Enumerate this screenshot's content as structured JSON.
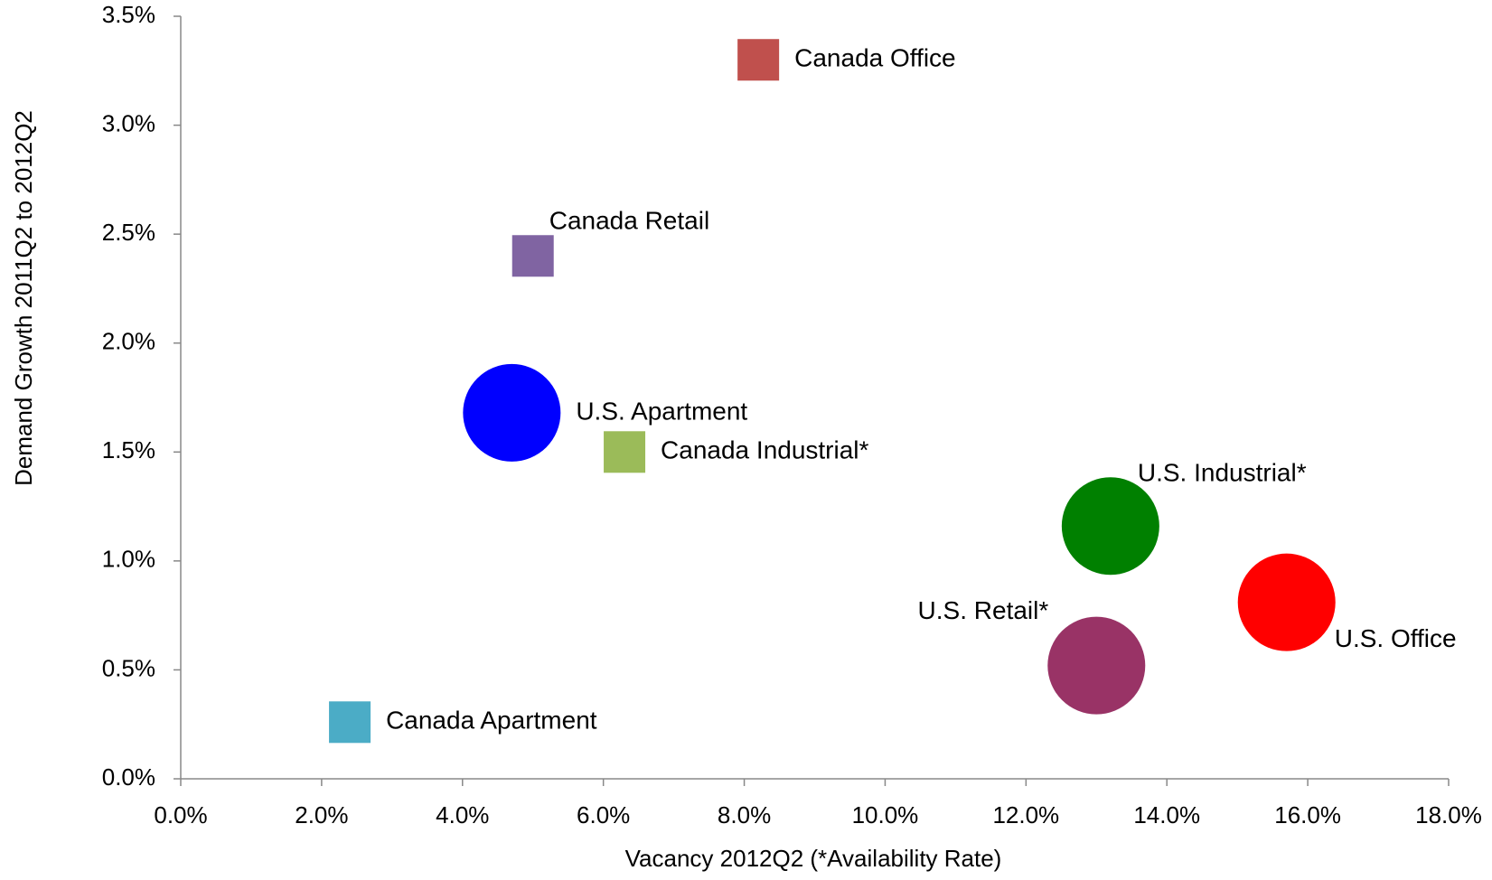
{
  "chart_data": {
    "type": "scatter",
    "x_label": "Vacancy 2012Q2 (*Availability Rate)",
    "y_label": "Demand Growth 2011Q2 to 2012Q2",
    "xlim": [
      0,
      18
    ],
    "ylim": [
      0,
      3.5
    ],
    "xticks": [
      {
        "value": 0,
        "label": "0.0%"
      },
      {
        "value": 2,
        "label": "2.0%"
      },
      {
        "value": 4,
        "label": "4.0%"
      },
      {
        "value": 6,
        "label": "6.0%"
      },
      {
        "value": 8,
        "label": "8.0%"
      },
      {
        "value": 10,
        "label": "10.0%"
      },
      {
        "value": 12,
        "label": "12.0%"
      },
      {
        "value": 14,
        "label": "14.0%"
      },
      {
        "value": 16,
        "label": "16.0%"
      },
      {
        "value": 18,
        "label": "18.0%"
      }
    ],
    "yticks": [
      {
        "value": 0,
        "label": "0.0%"
      },
      {
        "value": 0.5,
        "label": "0.5%"
      },
      {
        "value": 1,
        "label": "1.0%"
      },
      {
        "value": 1.5,
        "label": "1.5%"
      },
      {
        "value": 2,
        "label": "2.0%"
      },
      {
        "value": 2.5,
        "label": "2.5%"
      },
      {
        "value": 3,
        "label": "3.0%"
      },
      {
        "value": 3.5,
        "label": "3.5%"
      }
    ],
    "series": [
      {
        "name": "Canada Office",
        "color": "#c0504d",
        "marker": "square",
        "x": [
          8.2
        ],
        "y": [
          3.3
        ]
      },
      {
        "name": "Canada Retail",
        "color": "#8064a2",
        "marker": "square",
        "x": [
          5.0
        ],
        "y": [
          2.4
        ]
      },
      {
        "name": "U.S. Apartment",
        "color": "#0000ff",
        "marker": "circle",
        "x": [
          4.7
        ],
        "y": [
          1.68
        ]
      },
      {
        "name": "Canada Industrial*",
        "color": "#9bbb59",
        "marker": "square",
        "x": [
          6.3
        ],
        "y": [
          1.5
        ]
      },
      {
        "name": "U.S. Industrial*",
        "color": "#008000",
        "marker": "circle",
        "x": [
          13.2
        ],
        "y": [
          1.16
        ]
      },
      {
        "name": "U.S. Office",
        "color": "#ff0000",
        "marker": "circle",
        "x": [
          15.7
        ],
        "y": [
          0.81
        ]
      },
      {
        "name": "U.S. Retail*",
        "color": "#993366",
        "marker": "circle",
        "x": [
          13.0
        ],
        "y": [
          0.52
        ]
      },
      {
        "name": "Canada Apartment",
        "color": "#4bacc6",
        "marker": "square",
        "x": [
          2.4
        ],
        "y": [
          0.26
        ]
      }
    ]
  }
}
